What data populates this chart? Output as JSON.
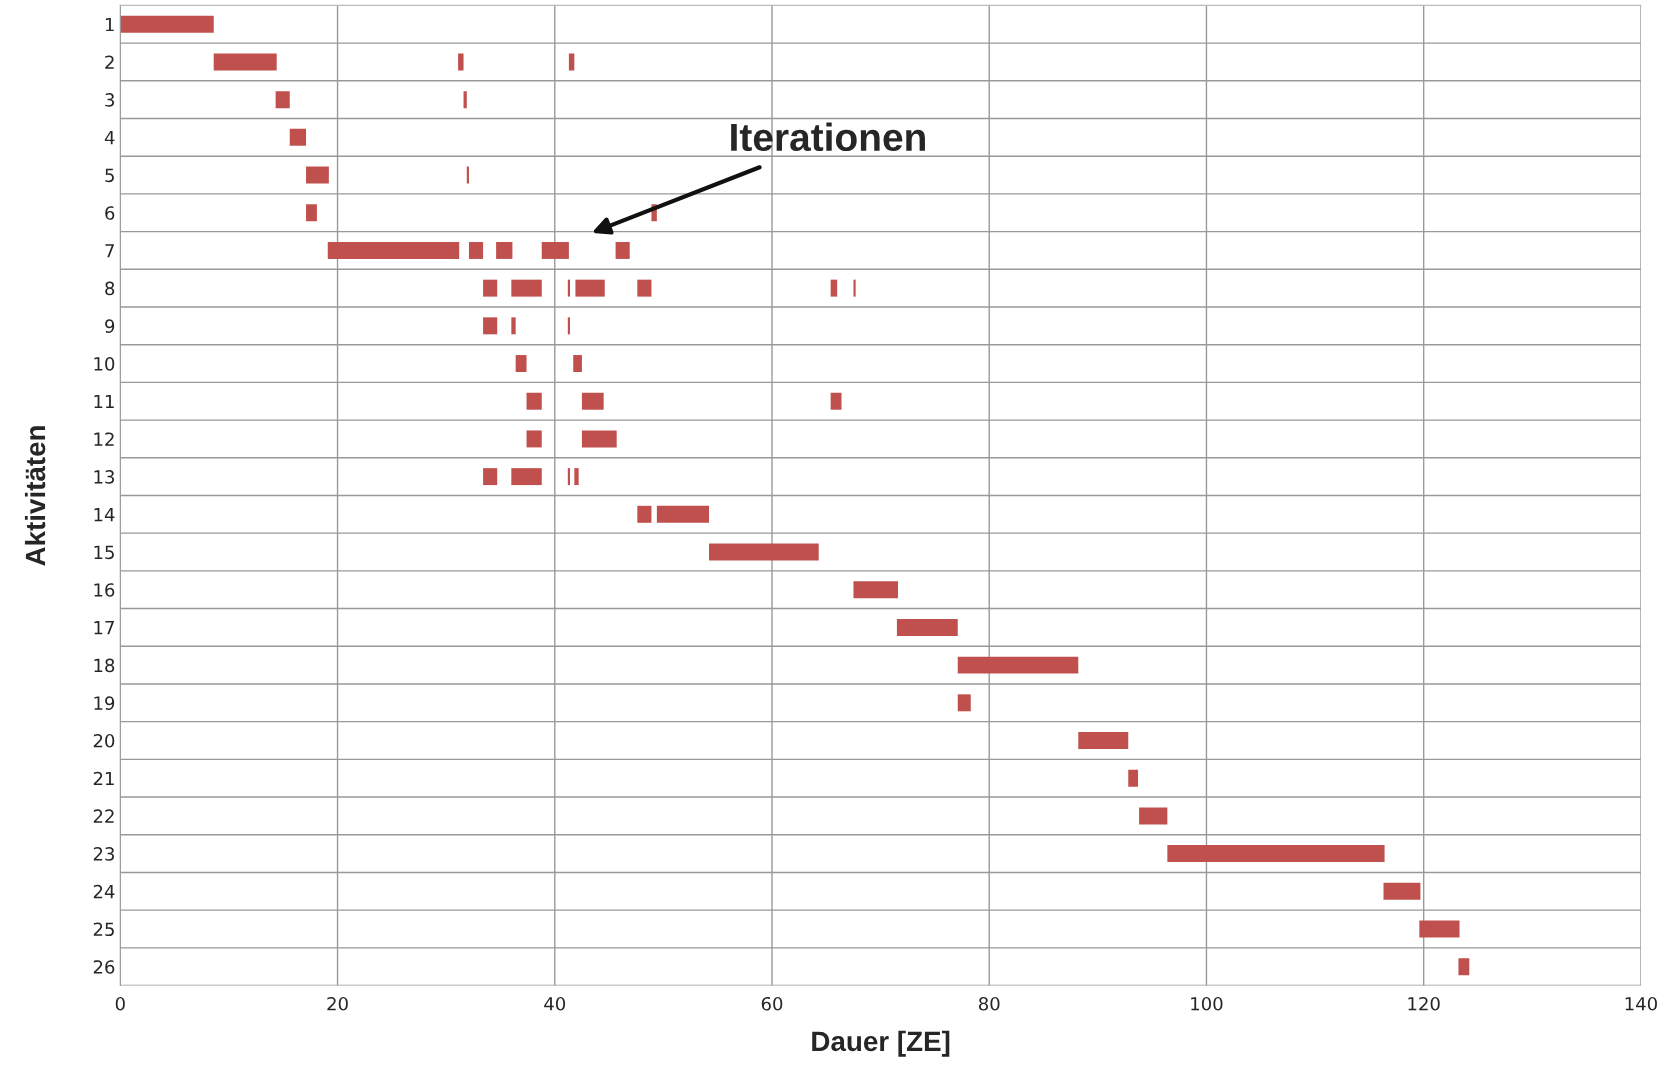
{
  "chart_data": {
    "type": "bar",
    "orientation": "horizontal",
    "xlabel": "Dauer [ZE]",
    "ylabel": "Aktivitäten",
    "categories": [
      "1",
      "2",
      "3",
      "4",
      "5",
      "6",
      "7",
      "8",
      "9",
      "10",
      "11",
      "12",
      "13",
      "14",
      "15",
      "16",
      "17",
      "18",
      "19",
      "20",
      "21",
      "22",
      "23",
      "24",
      "25",
      "26"
    ],
    "series": [
      {
        "color": "#c0504d",
        "base": [
          0,
          8.6,
          14.3,
          15.6,
          17.1,
          17.1,
          19.1,
          33.4,
          33.4,
          36.4,
          37.4,
          37.4,
          33.4,
          47.6,
          54.2,
          67.5,
          71.5,
          77.1,
          77.1,
          88.2,
          92.8,
          93.8,
          96.4,
          116.3,
          119.6,
          123.2
        ],
        "values": [
          8.6,
          5.8,
          1.3,
          1.5,
          2.1,
          1.0,
          12.1,
          1.3,
          1.3,
          1.0,
          1.4,
          1.4,
          1.3,
          1.3,
          10.1,
          4.1,
          5.6,
          11.1,
          1.2,
          4.6,
          0.9,
          2.6,
          20.0,
          3.4,
          3.7,
          1.0
        ]
      },
      {
        "color": "#c0504d",
        "base": [
          null,
          31.1,
          31.6,
          null,
          31.9,
          48.9,
          32.1,
          36.0,
          36.0,
          41.7,
          42.5,
          42.5,
          36.0,
          49.4,
          null,
          null,
          null,
          null,
          null,
          null,
          null,
          null,
          null,
          null,
          null,
          null
        ],
        "values": [
          null,
          0.5,
          0.3,
          null,
          0.2,
          0.5,
          1.3,
          2.8,
          0.4,
          0.8,
          2.0,
          3.2,
          2.8,
          4.8,
          null,
          null,
          null,
          null,
          null,
          null,
          null,
          null,
          null,
          null,
          null,
          null
        ]
      },
      {
        "color": "#c0504d",
        "base": [
          null,
          41.3,
          null,
          null,
          null,
          null,
          34.6,
          41.2,
          41.2,
          null,
          65.4,
          null,
          41.2,
          null,
          null,
          null,
          null,
          null,
          null,
          null,
          null,
          null,
          null,
          null,
          null,
          null
        ],
        "values": [
          null,
          0.5,
          null,
          null,
          null,
          null,
          1.5,
          0.2,
          0.2,
          null,
          1.0,
          null,
          0.2,
          null,
          null,
          null,
          null,
          null,
          null,
          null,
          null,
          null,
          null,
          null,
          null,
          null
        ]
      },
      {
        "color": "#c0504d",
        "base": [
          null,
          null,
          null,
          null,
          null,
          null,
          38.8,
          41.9,
          null,
          null,
          null,
          null,
          41.8,
          null,
          null,
          null,
          null,
          null,
          null,
          null,
          null,
          null,
          null,
          null,
          null,
          null
        ],
        "values": [
          null,
          null,
          null,
          null,
          null,
          null,
          2.5,
          2.7,
          null,
          null,
          null,
          null,
          0.4,
          null,
          null,
          null,
          null,
          null,
          null,
          null,
          null,
          null,
          null,
          null,
          null,
          null
        ]
      },
      {
        "color": "#c0504d",
        "base": [
          null,
          null,
          null,
          null,
          null,
          null,
          45.6,
          47.6,
          null,
          null,
          null,
          null,
          null,
          null,
          null,
          null,
          null,
          null,
          null,
          null,
          null,
          null,
          null,
          null,
          null,
          null
        ],
        "values": [
          null,
          null,
          null,
          null,
          null,
          null,
          1.3,
          1.3,
          null,
          null,
          null,
          null,
          null,
          null,
          null,
          null,
          null,
          null,
          null,
          null,
          null,
          null,
          null,
          null,
          null,
          null
        ]
      },
      {
        "color": "#c0504d",
        "base": [
          null,
          null,
          null,
          null,
          null,
          null,
          null,
          65.4,
          null,
          null,
          null,
          null,
          null,
          null,
          null,
          null,
          null,
          null,
          null,
          null,
          null,
          null,
          null,
          null,
          null,
          null
        ],
        "values": [
          null,
          null,
          null,
          null,
          null,
          null,
          null,
          0.6,
          null,
          null,
          null,
          null,
          null,
          null,
          null,
          null,
          null,
          null,
          null,
          null,
          null,
          null,
          null,
          null,
          null,
          null
        ]
      },
      {
        "color": "#c0504d",
        "base": [
          null,
          null,
          null,
          null,
          null,
          null,
          null,
          67.5,
          null,
          null,
          null,
          null,
          null,
          null,
          null,
          null,
          null,
          null,
          null,
          null,
          null,
          null,
          null,
          null,
          null,
          null
        ],
        "values": [
          null,
          null,
          null,
          null,
          null,
          null,
          null,
          0.2,
          null,
          null,
          null,
          null,
          null,
          null,
          null,
          null,
          null,
          null,
          null,
          null,
          null,
          null,
          null,
          null,
          null,
          null
        ]
      }
    ],
    "xlim": [
      0,
      140
    ],
    "xticks": [
      0,
      20,
      40,
      60,
      80,
      100,
      120,
      140
    ],
    "grid": true,
    "legend": false,
    "annotations": [
      "Iterationen"
    ]
  }
}
